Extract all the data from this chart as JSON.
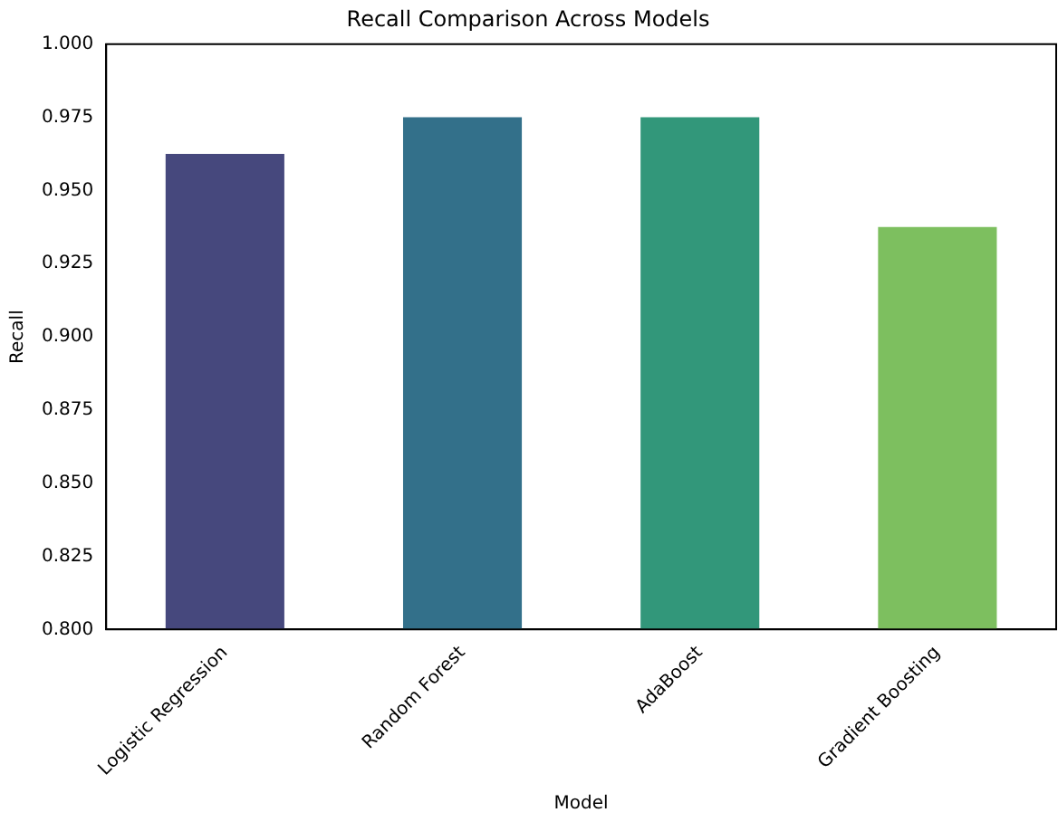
{
  "chart_data": {
    "type": "bar",
    "title": "Recall Comparison Across Models",
    "xlabel": "Model",
    "ylabel": "Recall",
    "categories": [
      "Logistic Regression",
      "Random Forest",
      "AdaBoost",
      "Gradient Boosting"
    ],
    "values": [
      0.9625,
      0.975,
      0.975,
      0.9375
    ],
    "colors": [
      "#46487d",
      "#33708a",
      "#32977a",
      "#7dbf5f"
    ],
    "ylim": [
      0.8,
      1.0
    ],
    "yticks": [
      {
        "value": 0.8,
        "label": "0.800"
      },
      {
        "value": 0.825,
        "label": "0.825"
      },
      {
        "value": 0.85,
        "label": "0.850"
      },
      {
        "value": 0.875,
        "label": "0.875"
      },
      {
        "value": 0.9,
        "label": "0.900"
      },
      {
        "value": 0.925,
        "label": "0.925"
      },
      {
        "value": 0.95,
        "label": "0.950"
      },
      {
        "value": 0.975,
        "label": "0.975"
      },
      {
        "value": 1.0,
        "label": "1.000"
      }
    ],
    "grid": false,
    "legend": false
  }
}
